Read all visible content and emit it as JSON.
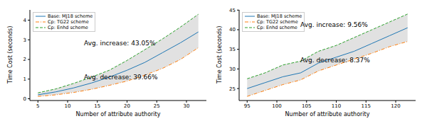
{
  "chart_data": [
    {
      "type": "line",
      "x_label": "Number of attribute authority",
      "y_label": "Time Cost (seconds)",
      "x": [
        5,
        8,
        11,
        14,
        17,
        20,
        23,
        26,
        29,
        32
      ],
      "xlim": [
        3.65,
        33.35
      ],
      "xticks": [
        5,
        10,
        15,
        20,
        25,
        30
      ],
      "ylim": [
        -0.09,
        4.52
      ],
      "yticks": [
        0,
        1,
        2,
        3,
        4
      ],
      "grid": false,
      "legend": "upper left",
      "series": [
        {
          "name": "Base: MJ18 scheme",
          "color": "#1f77b4",
          "line_style": "solid",
          "values": [
            0.2,
            0.35,
            0.55,
            0.8,
            1.1,
            1.45,
            1.85,
            2.35,
            2.85,
            3.4
          ]
        },
        {
          "name": "Cp: TG22 scheme",
          "color": "#ff7f0e",
          "line_style": "dashdot",
          "values": [
            0.12,
            0.2,
            0.32,
            0.48,
            0.68,
            0.9,
            1.2,
            1.55,
            2.0,
            2.6
          ]
        },
        {
          "name": "Cp: Enhd scheme",
          "color": "#2ca02c",
          "line_style": "dashed",
          "values": [
            0.3,
            0.5,
            0.78,
            1.1,
            1.45,
            1.95,
            2.5,
            3.05,
            3.65,
            4.3
          ]
        }
      ],
      "annotations": [
        "Avg. increase: 43.05%",
        "Avg. decrease: 39.66%"
      ]
    },
    {
      "type": "line",
      "x_label": "Number of attribute authority",
      "y_label": "Time Cost (seconds)",
      "x": [
        95,
        98,
        101,
        104,
        107,
        110,
        113,
        116,
        119,
        122
      ],
      "xlim": [
        93.65,
        123.35
      ],
      "xticks": [
        95,
        100,
        105,
        110,
        115,
        120
      ],
      "ylim": [
        21.95,
        45.05
      ],
      "yticks": [
        25,
        30,
        35,
        40,
        45
      ],
      "grid": false,
      "legend": "upper left",
      "series": [
        {
          "name": "Base: MJ18 scheme",
          "color": "#1f77b4",
          "line_style": "solid",
          "values": [
            25,
            26.5,
            28,
            29,
            31.5,
            33,
            34.5,
            36.5,
            38.5,
            40.5
          ]
        },
        {
          "name": "Cp: TG22 scheme",
          "color": "#ff7f0e",
          "line_style": "dashdot",
          "values": [
            23,
            24.5,
            26,
            27.2,
            29.5,
            31,
            32.5,
            34,
            35.7,
            37
          ]
        },
        {
          "name": "Cp: Enhd scheme",
          "color": "#2ca02c",
          "line_style": "dashed",
          "values": [
            27.5,
            29,
            31,
            32,
            34.5,
            36,
            38,
            40,
            42,
            44
          ]
        }
      ],
      "annotations": [
        "Avg. increase: 9.56%",
        "Avg. decrease: 8.37%"
      ]
    }
  ]
}
